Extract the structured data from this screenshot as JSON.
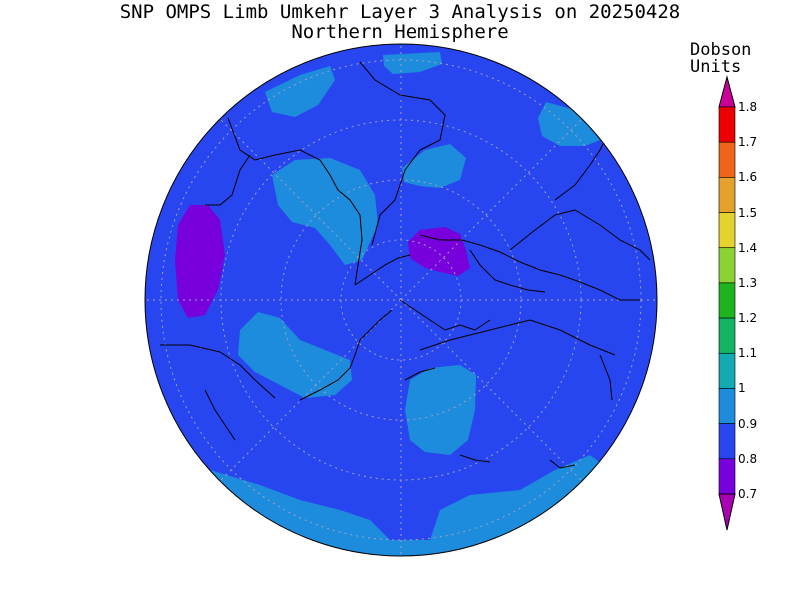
{
  "title": {
    "line1": "SNP OMPS Limb Umkehr Layer 3 Analysis on 20250428",
    "line2": "Northern Hemisphere"
  },
  "colorbar": {
    "units_line1": "Dobson",
    "units_line2": "Units",
    "levels": [
      "1.8",
      "1.7",
      "1.6",
      "1.5",
      "1.4",
      "1.3",
      "1.2",
      "1.1",
      "1",
      "0.9",
      "0.8",
      "0.7"
    ],
    "colors": [
      "#cc0099",
      "#ee0000",
      "#f06418",
      "#e6a02c",
      "#e6d22c",
      "#8cd232",
      "#1eb41e",
      "#14b464",
      "#14aab4",
      "#1e8cdc",
      "#2846f0",
      "#7800dc",
      "#aa00b4"
    ]
  },
  "map": {
    "projection": "north-polar-stereographic",
    "background_color": "#2846f0",
    "patches": [
      {
        "color": "#1e8cdc",
        "region": "upper-left near equator (Atlantic)"
      },
      {
        "color": "#1e8cdc",
        "region": "top near 60W"
      },
      {
        "color": "#1e8cdc",
        "region": "upper-right (North Africa)"
      },
      {
        "color": "#1e8cdc",
        "region": "Canada / North America"
      },
      {
        "color": "#1e8cdc",
        "region": "Greenland / North Atlantic"
      },
      {
        "color": "#1e8cdc",
        "region": "Alaska / North Pacific"
      },
      {
        "color": "#1e8cdc",
        "region": "Pacific, south of Kamchatka"
      },
      {
        "color": "#1e8cdc",
        "region": "bottom rim (western Pacific tropics)"
      },
      {
        "color": "#7800dc",
        "region": "eastern Pacific near equator"
      },
      {
        "color": "#7800dc",
        "region": "Scandinavia / Barents Sea"
      }
    ]
  }
}
